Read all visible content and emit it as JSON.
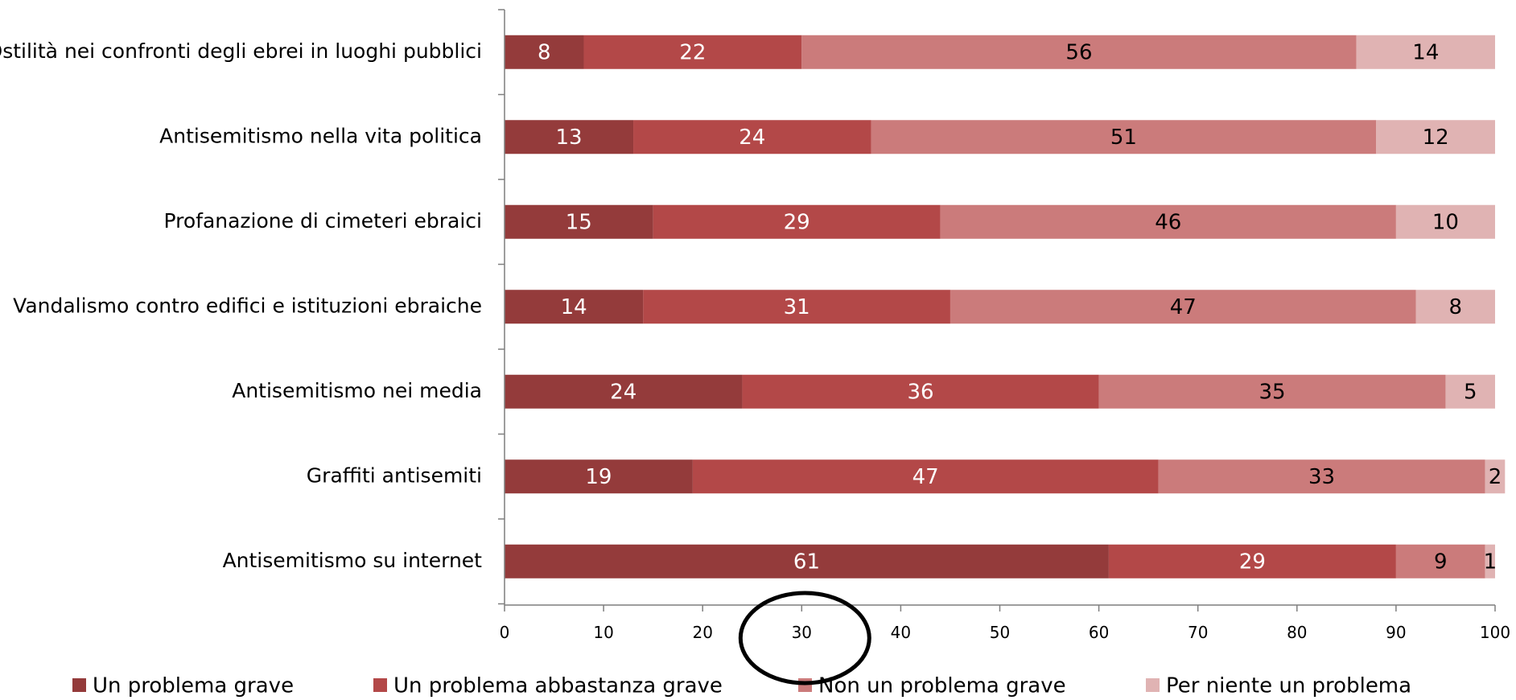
{
  "chart_data": {
    "type": "bar",
    "orientation": "horizontal",
    "stacked": true,
    "categories": [
      "Ostilità nei confronti degli ebrei in luoghi pubblici",
      "Antisemitismo nella vita politica",
      "Profanazione di cimeteri ebraici",
      "Vandalismo contro edifici e istituzioni ebraiche",
      "Antisemitismo nei media",
      "Graffiti antisemiti",
      "Antisemitismo su internet"
    ],
    "series": [
      {
        "name": "Un problema grave",
        "color": "#943b3b",
        "label_color": "#ffffff",
        "values": [
          8,
          13,
          15,
          14,
          24,
          19,
          61
        ]
      },
      {
        "name": "Un problema abbastanza grave",
        "color": "#b34848",
        "label_color": "#ffffff",
        "values": [
          22,
          24,
          29,
          31,
          36,
          47,
          29
        ]
      },
      {
        "name": "Non un problema grave",
        "color": "#cb7b7b",
        "label_color": "#000000",
        "values": [
          56,
          51,
          46,
          47,
          35,
          33,
          9
        ]
      },
      {
        "name": "Per niente un problema",
        "color": "#e0b3b3",
        "label_color": "#000000",
        "values": [
          14,
          12,
          10,
          8,
          5,
          2,
          1
        ]
      }
    ],
    "xlim": [
      0,
      100
    ],
    "xticks": [
      "0",
      "10",
      "20",
      "30",
      "40",
      "50",
      "60",
      "70",
      "80",
      "90",
      "100"
    ],
    "grid": false,
    "legend_position": "bottom",
    "annotation": {
      "shape": "ellipse",
      "target_tick": "30",
      "stroke": "#000000"
    }
  }
}
